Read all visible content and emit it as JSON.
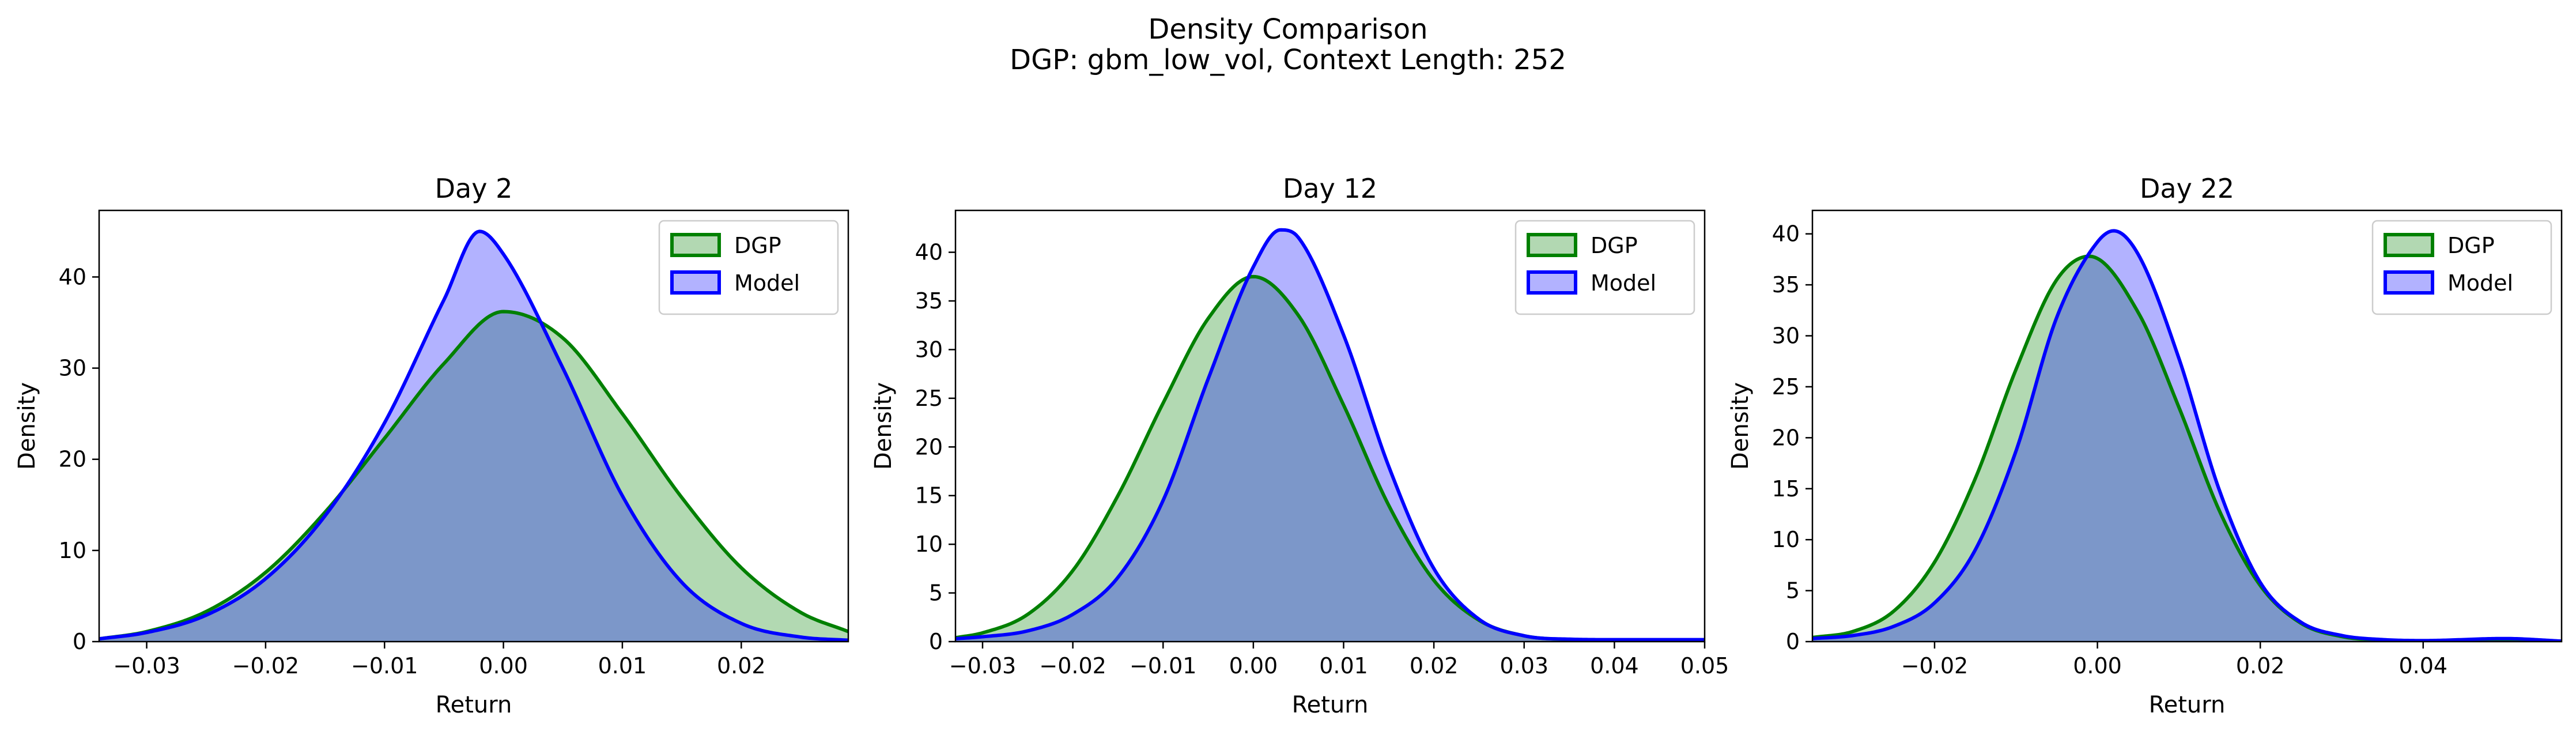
{
  "title": "Density Comparison",
  "subtitle": "DGP: gbm_low_vol, Context Length: 252",
  "legend": {
    "dgp_label": "DGP",
    "model_label": "Model"
  },
  "colors": {
    "dgp_line": "#008000",
    "dgp_fill": "#b2d8b2",
    "model_line": "#0000ff",
    "model_fill": "#b2b2ff",
    "overlap_fill": "#7f99c9"
  },
  "chart_data": [
    {
      "type": "area",
      "title": "Day 2",
      "xlabel": "Return",
      "ylabel": "Density",
      "xlim": [
        -0.034,
        0.029
      ],
      "ylim": [
        0,
        47.3
      ],
      "xticks": [
        -0.03,
        -0.02,
        -0.01,
        0.0,
        0.01,
        0.02
      ],
      "xtick_labels": [
        "−0.03",
        "−0.02",
        "−0.01",
        "0.00",
        "0.01",
        "0.02"
      ],
      "yticks": [
        0,
        10,
        20,
        30,
        40
      ],
      "ytick_labels": [
        "0",
        "10",
        "20",
        "30",
        "40"
      ],
      "legend_position": "upper right",
      "series": [
        {
          "name": "DGP",
          "x": [
            -0.034,
            -0.03,
            -0.025,
            -0.02,
            -0.015,
            -0.01,
            -0.005,
            0.0,
            0.005,
            0.01,
            0.015,
            0.02,
            0.025,
            0.029
          ],
          "y": [
            0.3,
            1.1,
            3.3,
            7.6,
            14.2,
            22.3,
            30.5,
            36.2,
            33.3,
            25.0,
            15.8,
            8.1,
            3.2,
            1.1
          ]
        },
        {
          "name": "Model",
          "x": [
            -0.034,
            -0.03,
            -0.025,
            -0.02,
            -0.015,
            -0.01,
            -0.005,
            -0.002,
            0.0,
            0.005,
            0.01,
            0.015,
            0.02,
            0.025,
            0.029
          ],
          "y": [
            0.3,
            1.0,
            2.9,
            6.9,
            13.8,
            24.0,
            37.5,
            45.0,
            42.5,
            30.0,
            16.0,
            6.5,
            2.0,
            0.5,
            0.15
          ]
        }
      ]
    },
    {
      "type": "area",
      "title": "Day 12",
      "xlabel": "Return",
      "ylabel": "Density",
      "xlim": [
        -0.033,
        0.05
      ],
      "ylim": [
        0,
        44.3
      ],
      "xticks": [
        -0.03,
        -0.02,
        -0.01,
        0.0,
        0.01,
        0.02,
        0.03,
        0.04,
        0.05
      ],
      "xtick_labels": [
        "−0.03",
        "−0.02",
        "−0.01",
        "0.00",
        "0.01",
        "0.02",
        "0.03",
        "0.04",
        "0.05"
      ],
      "yticks": [
        0,
        5,
        10,
        15,
        20,
        25,
        30,
        35,
        40
      ],
      "ytick_labels": [
        "0",
        "5",
        "10",
        "15",
        "20",
        "25",
        "30",
        "35",
        "40"
      ],
      "legend_position": "upper right",
      "series": [
        {
          "name": "DGP",
          "x": [
            -0.033,
            -0.03,
            -0.025,
            -0.02,
            -0.015,
            -0.01,
            -0.005,
            0.0,
            0.005,
            0.01,
            0.015,
            0.02,
            0.025,
            0.03,
            0.035,
            0.04,
            0.05
          ],
          "y": [
            0.4,
            0.9,
            2.8,
            7.3,
            15.0,
            24.5,
            33.2,
            37.5,
            33.5,
            24.3,
            14.0,
            6.3,
            2.2,
            0.6,
            0.2,
            0.05,
            0.02
          ]
        },
        {
          "name": "Model",
          "x": [
            -0.033,
            -0.03,
            -0.025,
            -0.02,
            -0.015,
            -0.01,
            -0.005,
            0.0,
            0.003,
            0.005,
            0.01,
            0.015,
            0.02,
            0.025,
            0.03,
            0.035,
            0.04,
            0.05
          ],
          "y": [
            0.3,
            0.5,
            1.1,
            2.8,
            6.6,
            14.5,
            27.0,
            38.5,
            42.3,
            41.5,
            31.5,
            18.0,
            7.5,
            2.3,
            0.6,
            0.25,
            0.2,
            0.2
          ]
        }
      ]
    },
    {
      "type": "area",
      "title": "Day 22",
      "xlabel": "Return",
      "ylabel": "Density",
      "xlim": [
        -0.035,
        0.057
      ],
      "ylim": [
        0,
        42.3
      ],
      "xticks": [
        -0.02,
        0.0,
        0.02,
        0.04
      ],
      "xtick_labels": [
        "−0.02",
        "0.00",
        "0.02",
        "0.04"
      ],
      "yticks": [
        0,
        5,
        10,
        15,
        20,
        25,
        30,
        35,
        40
      ],
      "ytick_labels": [
        "0",
        "5",
        "10",
        "15",
        "20",
        "25",
        "30",
        "35",
        "40"
      ],
      "legend_position": "upper right",
      "series": [
        {
          "name": "DGP",
          "x": [
            -0.035,
            -0.03,
            -0.025,
            -0.02,
            -0.015,
            -0.01,
            -0.005,
            -0.001,
            0.005,
            0.01,
            0.015,
            0.02,
            0.025,
            0.03,
            0.035,
            0.04,
            0.057
          ],
          "y": [
            0.4,
            1.0,
            3.0,
            7.8,
            16.0,
            26.7,
            35.5,
            37.8,
            32.3,
            23.0,
            12.8,
            5.5,
            1.8,
            0.5,
            0.15,
            0.05,
            0.02
          ]
        },
        {
          "name": "Model",
          "x": [
            -0.035,
            -0.03,
            -0.025,
            -0.02,
            -0.015,
            -0.01,
            -0.005,
            0.0,
            0.002,
            0.005,
            0.01,
            0.015,
            0.02,
            0.025,
            0.03,
            0.035,
            0.04,
            0.05,
            0.057
          ],
          "y": [
            0.3,
            0.6,
            1.5,
            3.8,
            9.0,
            18.7,
            31.8,
            39.2,
            40.3,
            38.0,
            27.8,
            14.8,
            5.8,
            1.9,
            0.6,
            0.2,
            0.1,
            0.3,
            0.05
          ]
        }
      ]
    }
  ]
}
